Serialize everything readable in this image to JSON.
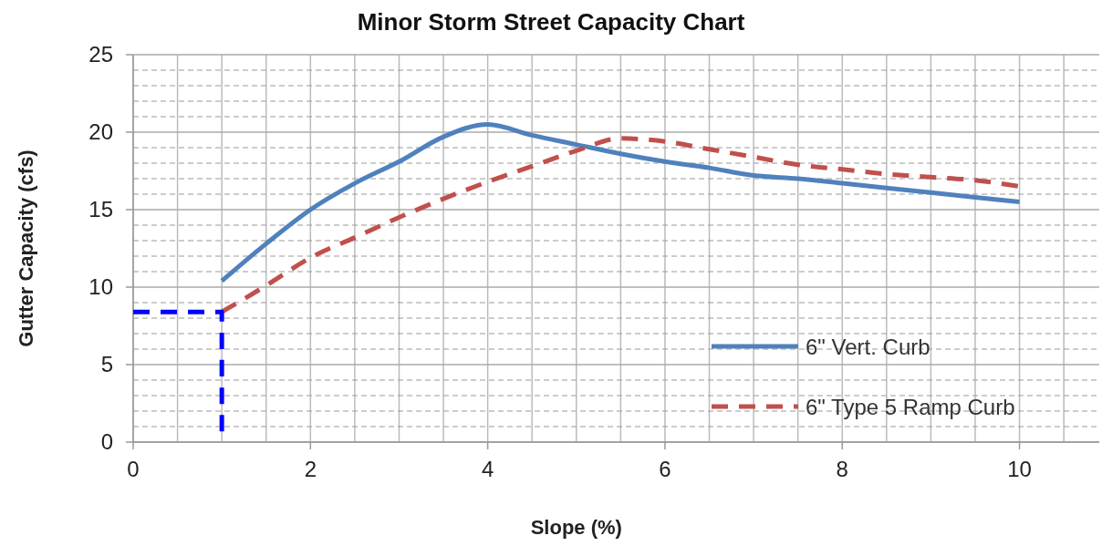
{
  "chart_data": {
    "type": "line",
    "title": "Minor Storm Street Capacity Chart",
    "xlabel": "Slope (%)",
    "ylabel": "Gutter Capacity (cfs)",
    "xlim": [
      0,
      10.9
    ],
    "xticks": [
      0,
      2,
      4,
      6,
      8,
      10
    ],
    "ylim": [
      0,
      25
    ],
    "yticks": [
      0,
      5,
      10,
      15,
      20,
      25
    ],
    "grid": true,
    "legend": "bottom right",
    "series": [
      {
        "name": "6\" Vert. Curb",
        "color": "#4f81bd",
        "line_style": "solid",
        "x": [
          1,
          1.5,
          2,
          2.5,
          3,
          3.5,
          4,
          4.5,
          5,
          5.5,
          6,
          6.5,
          7,
          7.5,
          8,
          8.5,
          9,
          9.5,
          10
        ],
        "values": [
          10.4,
          12.8,
          15.0,
          16.7,
          18.1,
          19.7,
          20.5,
          19.8,
          19.2,
          18.6,
          18.1,
          17.7,
          17.2,
          17.0,
          16.7,
          16.4,
          16.1,
          15.8,
          15.5
        ]
      },
      {
        "name": "6\" Type 5 Ramp Curb",
        "color": "#c0504d",
        "line_style": "dashed",
        "x": [
          1,
          1.5,
          2,
          2.5,
          3,
          3.5,
          4,
          4.5,
          5,
          5.5,
          6,
          6.5,
          7,
          7.5,
          8,
          8.5,
          9,
          9.5,
          10
        ],
        "values": [
          8.4,
          10.1,
          11.9,
          13.2,
          14.5,
          15.7,
          16.8,
          17.8,
          18.8,
          19.6,
          19.4,
          18.9,
          18.4,
          17.9,
          17.6,
          17.3,
          17.1,
          16.9,
          16.5
        ]
      },
      {
        "color": "#0000ff",
        "line_style": "dashed",
        "x": [
          0,
          1,
          1
        ],
        "values": [
          8.4,
          8.4,
          0
        ]
      }
    ]
  }
}
